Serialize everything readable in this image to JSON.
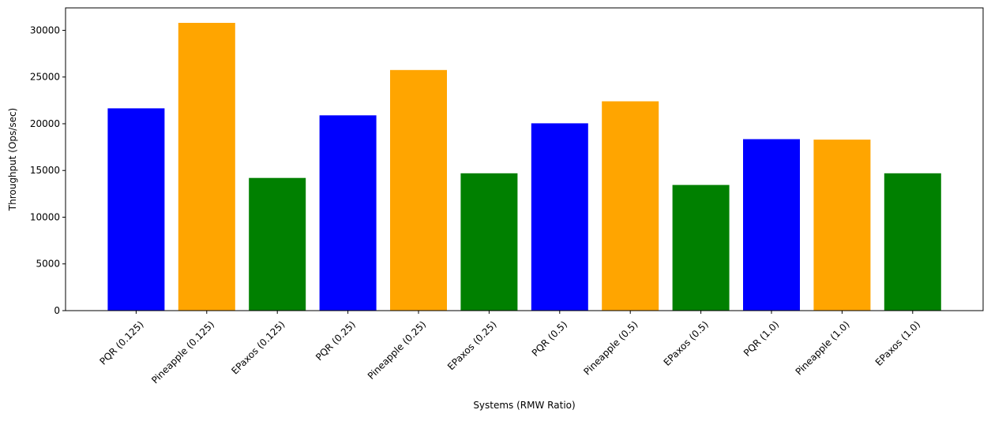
{
  "chart_data": {
    "type": "bar",
    "title": "",
    "xlabel": "Systems (RMW Ratio)",
    "ylabel": "Throughput (Ops/sec)",
    "ylim": [
      0,
      32400
    ],
    "yticks": [
      0,
      5000,
      10000,
      15000,
      20000,
      25000,
      30000
    ],
    "grid": false,
    "legend": "none",
    "categories": [
      "PQR (0.125)",
      "Pineapple (0.125)",
      "EPaxos (0.125)",
      "PQR (0.25)",
      "Pineapple (0.25)",
      "EPaxos (0.25)",
      "PQR (0.5)",
      "Pineapple (0.5)",
      "EPaxos (0.5)",
      "PQR (1.0)",
      "Pineapple (1.0)",
      "EPaxos (1.0)"
    ],
    "values": [
      21650,
      30800,
      14200,
      20900,
      25750,
      14700,
      20050,
      22400,
      13450,
      18350,
      18300,
      14700
    ],
    "colors": [
      "#0000ff",
      "#ffa500",
      "#008000",
      "#0000ff",
      "#ffa500",
      "#008000",
      "#0000ff",
      "#ffa500",
      "#008000",
      "#0000ff",
      "#ffa500",
      "#008000"
    ]
  }
}
